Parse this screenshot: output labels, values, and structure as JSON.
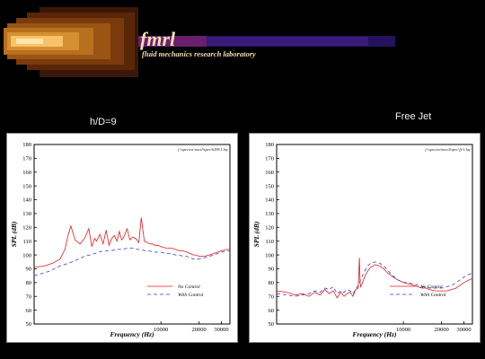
{
  "banner": {
    "logo_text": "fmrl",
    "subtitle": "fluid mechanics research laboratory",
    "colors": {
      "core": "#f6c36a",
      "mid": "#b8701d",
      "outer": "#6a2e08",
      "stripe": "#6a1f6e",
      "text": "#f4dfb0"
    }
  },
  "headings": {
    "left": "h/D=9",
    "right": "Free Jet"
  },
  "chart_data": [
    {
      "type": "line",
      "file_label": "f:\\spectra\\noctl\\spec\\hD9\\1.lay",
      "xlabel": "Frequency (Hz)",
      "ylabel": "SPL (dB)",
      "xscale": "log",
      "xlim": [
        1000,
        35000
      ],
      "ylim": [
        50,
        180
      ],
      "yticks": [
        50,
        60,
        70,
        80,
        90,
        100,
        110,
        120,
        130,
        140,
        150,
        160,
        170,
        180
      ],
      "xticks": [
        10000,
        20000,
        30000
      ],
      "xticklabels": [
        "10000",
        "20000",
        "30000"
      ],
      "grid": false,
      "legend_position": "lower-right",
      "series": [
        {
          "name": "No Control",
          "color": "#e41a1c",
          "dash": "",
          "x": [
            1000,
            1200,
            1400,
            1600,
            1750,
            1850,
            1950,
            2100,
            2300,
            2500,
            2700,
            2850,
            3000,
            3100,
            3300,
            3500,
            3700,
            3900,
            4100,
            4300,
            4500,
            4700,
            4900,
            5100,
            5400,
            5700,
            6000,
            6300,
            6700,
            7000,
            7400,
            7800,
            8200,
            8600,
            9000,
            9500,
            10000,
            11000,
            12000,
            13000,
            14000,
            15000,
            16000,
            17000,
            18000,
            19000,
            20000,
            21000,
            22000,
            24000,
            26000,
            28000,
            30000,
            33000,
            35000
          ],
          "y": [
            91,
            92,
            94,
            97,
            104,
            114,
            121,
            111,
            108,
            112,
            119,
            106,
            112,
            110,
            115,
            108,
            118,
            107,
            112,
            114,
            110,
            117,
            111,
            113,
            119,
            111,
            113,
            112,
            109,
            127,
            110,
            109,
            108,
            108,
            107,
            107,
            106,
            105,
            105,
            104,
            103,
            103,
            102,
            101,
            100,
            100,
            99,
            99,
            99,
            100,
            101,
            102,
            103,
            104,
            104
          ]
        },
        {
          "name": "With Control",
          "color": "#3a3ae0",
          "dash": "4,3",
          "x": [
            1000,
            1300,
            1600,
            2000,
            2500,
            3000,
            3500,
            4000,
            4500,
            5000,
            5500,
            6000,
            6500,
            7000,
            7500,
            8000,
            9000,
            10000,
            11000,
            12000,
            13000,
            14000,
            15000,
            16000,
            17000,
            18000,
            19000,
            20000,
            22000,
            24000,
            26000,
            28000,
            30000,
            33000,
            35000
          ],
          "y": [
            85,
            88,
            92,
            95,
            99,
            101,
            103,
            103,
            104,
            104,
            105,
            105,
            104,
            104,
            103,
            103,
            102,
            102,
            101,
            101,
            100,
            100,
            99,
            99,
            98,
            97,
            97,
            97,
            98,
            99,
            100,
            101,
            102,
            103,
            103
          ]
        }
      ]
    },
    {
      "type": "line",
      "file_label": "f:\\spectra\\noctl\\spec\\fj\\1.lay",
      "xlabel": "Frequency (Hz)",
      "ylabel": "SPL (dB)",
      "xscale": "log",
      "xlim": [
        1000,
        35000
      ],
      "ylim": [
        50,
        180
      ],
      "yticks": [
        50,
        60,
        70,
        80,
        90,
        100,
        110,
        120,
        130,
        140,
        150,
        160,
        170,
        180
      ],
      "xticks": [
        10000,
        20000,
        30000
      ],
      "xticklabels": [
        "10000",
        "20000",
        "30000"
      ],
      "grid": false,
      "legend_position": "lower-right",
      "series": [
        {
          "name": "No Control",
          "color": "#e41a1c",
          "dash": "",
          "x": [
            1000,
            1200,
            1400,
            1600,
            1800,
            2000,
            2200,
            2400,
            2600,
            2800,
            3000,
            3200,
            3400,
            3600,
            3800,
            4000,
            4200,
            4400,
            4500,
            4550,
            4600,
            4800,
            5000,
            5200,
            5500,
            6000,
            6500,
            7000,
            7500,
            8000,
            9000,
            10000,
            11000,
            12000,
            13000,
            14000,
            15000,
            16000,
            18000,
            20000,
            22000,
            24000,
            26000,
            28000,
            30000,
            33000,
            35000
          ],
          "y": [
            74,
            73,
            71,
            72,
            70,
            73,
            71,
            75,
            72,
            74,
            69,
            73,
            70,
            72,
            73,
            70,
            75,
            76,
            98,
            80,
            77,
            81,
            85,
            88,
            91,
            93,
            92,
            90,
            87,
            85,
            82,
            80,
            79,
            78,
            77,
            76,
            76,
            75,
            74,
            74,
            74,
            75,
            76,
            78,
            80,
            82,
            83
          ]
        },
        {
          "name": "With Control",
          "color": "#3a3ae0",
          "dash": "4,3",
          "x": [
            1000,
            1200,
            1400,
            1600,
            1800,
            2000,
            2200,
            2400,
            2600,
            2800,
            3000,
            3200,
            3400,
            3600,
            3800,
            4000,
            4200,
            4400,
            4600,
            4800,
            5000,
            5200,
            5500,
            6000,
            6500,
            7000,
            7500,
            8000,
            9000,
            10000,
            11000,
            12000,
            13000,
            14000,
            15000,
            16000,
            18000,
            20000,
            22000,
            24000,
            26000,
            28000,
            30000,
            33000,
            35000
          ],
          "y": [
            72,
            71,
            70,
            71,
            72,
            74,
            73,
            76,
            75,
            77,
            72,
            74,
            73,
            75,
            74,
            72,
            75,
            78,
            82,
            86,
            89,
            92,
            94,
            95,
            94,
            92,
            89,
            86,
            82,
            80,
            80,
            79,
            78,
            77,
            77,
            76,
            76,
            76,
            77,
            78,
            80,
            82,
            84,
            86,
            87
          ]
        }
      ]
    }
  ]
}
